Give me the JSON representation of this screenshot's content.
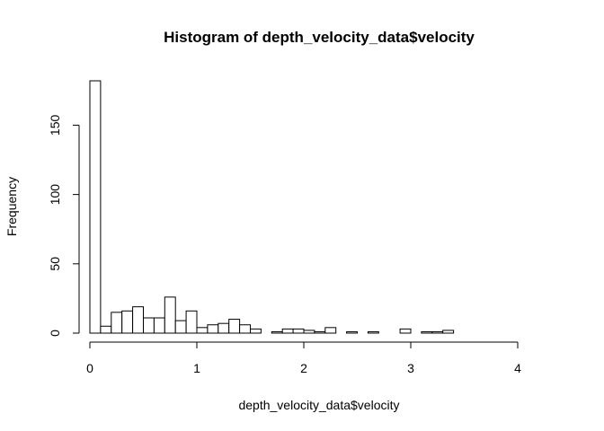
{
  "chart_data": {
    "type": "bar",
    "title": "Histogram of depth_velocity_data$velocity",
    "xlabel": "depth_velocity_data$velocity",
    "ylabel": "Frequency",
    "bin_width": 0.1,
    "bins_start": 0,
    "values": [
      182,
      5,
      15,
      16,
      19,
      11,
      11,
      26,
      9,
      16,
      4,
      6,
      7,
      10,
      6,
      3,
      0,
      1,
      3,
      3,
      2,
      1,
      4,
      0,
      1,
      0,
      1,
      0,
      0,
      3,
      0,
      1,
      1,
      2,
      0,
      0,
      0,
      0,
      0,
      0,
      0,
      0,
      0
    ],
    "xlim": [
      0,
      4.3
    ],
    "ylim": [
      0,
      182
    ],
    "x_ticks": [
      0,
      1,
      2,
      3,
      4
    ],
    "y_ticks": [
      0,
      50,
      100,
      150
    ],
    "grid": false,
    "legend": "none",
    "bar_fill": "#ffffff",
    "bar_stroke": "#000000"
  }
}
